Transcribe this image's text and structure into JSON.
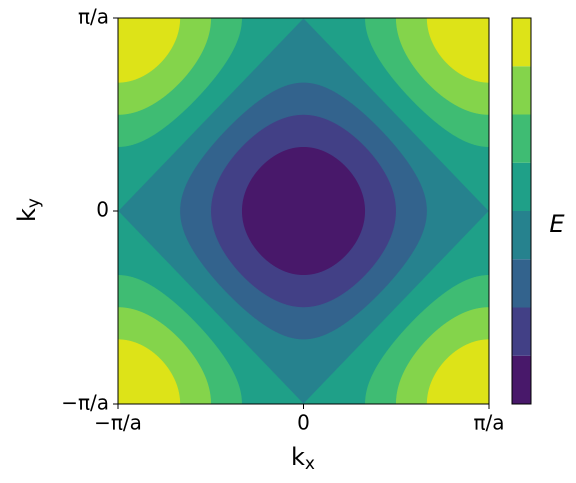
{
  "chart_data": {
    "type": "contourf",
    "xlabel": [
      "k",
      "x"
    ],
    "ylabel": [
      "k",
      "y"
    ],
    "colorbar_label": "E",
    "xlim": [
      -3.14159,
      3.14159
    ],
    "ylim": [
      -3.14159,
      3.14159
    ],
    "xticks": [
      {
        "value": -3.14159,
        "label": "−π/a"
      },
      0,
      {
        "value": 3.14159,
        "label": "π/a"
      }
    ],
    "yticks": [
      {
        "value": -3.14159,
        "label": "−π/a"
      },
      0,
      {
        "value": 3.14159,
        "label": "π/a"
      }
    ],
    "levels": [
      -2,
      -1.5,
      -1,
      -0.5,
      0,
      0.5,
      1,
      1.5,
      2
    ],
    "colors": [
      "#48186a",
      "#424086",
      "#33638d",
      "#26828e",
      "#1fa088",
      "#3fbc73",
      "#84d44b",
      "#dde318"
    ]
  }
}
